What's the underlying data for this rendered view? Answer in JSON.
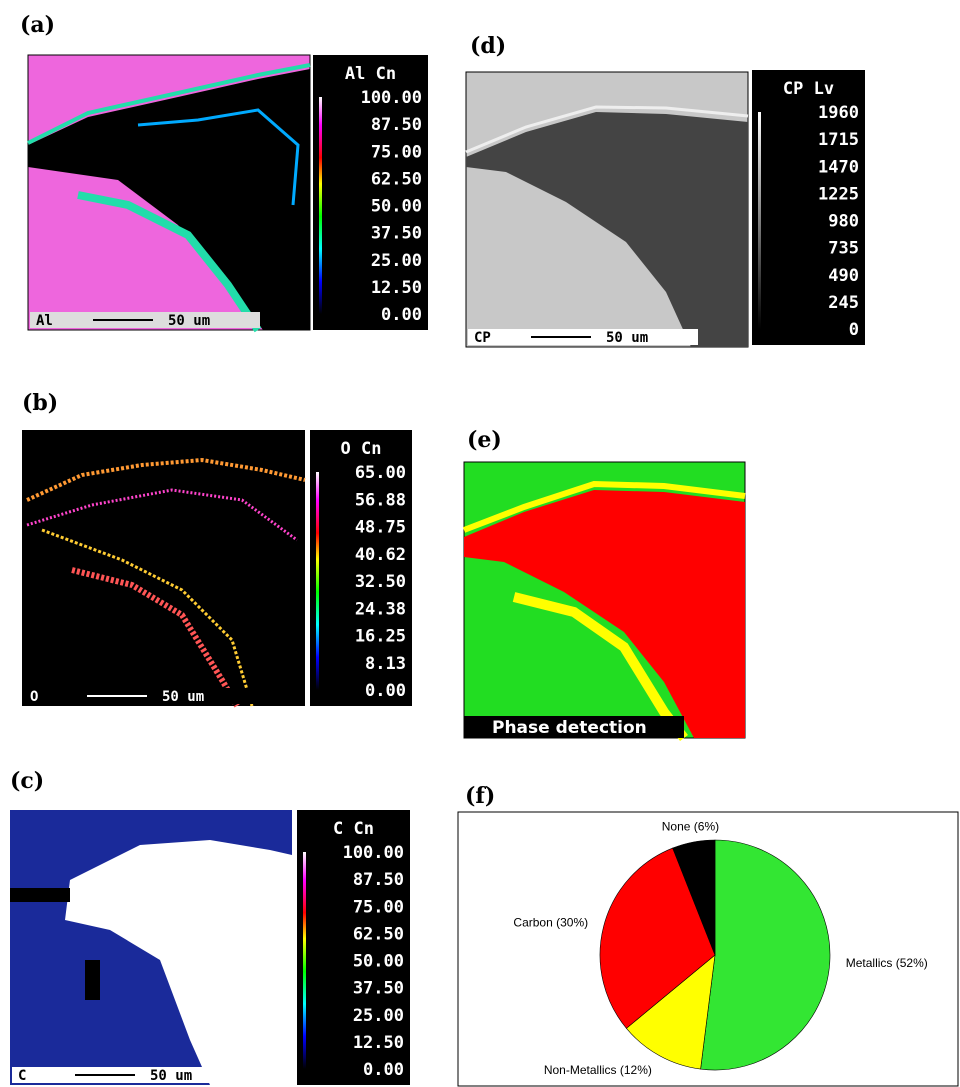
{
  "maps": [
    {
      "label": "(a)",
      "colorbar_title": "Al Cn",
      "ticks": [
        "100.00",
        "87.50",
        "75.00",
        "62.50",
        "50.00",
        "37.50",
        "25.00",
        "12.50",
        "0.00"
      ],
      "scale_element": "Al",
      "scale_length": "50 um"
    },
    {
      "label": "(b)",
      "colorbar_title": "O Cn",
      "ticks": [
        "65.00",
        "56.88",
        "48.75",
        "40.62",
        "32.50",
        "24.38",
        "16.25",
        "8.13",
        "0.00"
      ],
      "scale_element": "O",
      "scale_length": "50 um"
    },
    {
      "label": "(c)",
      "colorbar_title": "C Cn",
      "ticks": [
        "100.00",
        "87.50",
        "75.00",
        "62.50",
        "50.00",
        "37.50",
        "25.00",
        "12.50",
        "0.00"
      ],
      "scale_element": "C",
      "scale_length": "50 um"
    },
    {
      "label": "(d)",
      "colorbar_title": "CP Lv",
      "ticks": [
        "1960",
        "1715",
        "1470",
        "1225",
        "980",
        "735",
        "490",
        "245",
        "0"
      ],
      "scale_element": "CP",
      "scale_length": "50 um"
    }
  ],
  "phase_map": {
    "label": "(e)",
    "caption": "Phase detection"
  },
  "chart_data": {
    "type": "pie",
    "title": "(f)",
    "categories": [
      "Metallics (52%)",
      "Non-Metallics (12%)",
      "Carbon (30%)",
      "None (6%)"
    ],
    "values": [
      52,
      12,
      30,
      6
    ],
    "colors": [
      "#33e633",
      "#ffff00",
      "#ff0000",
      "#000000"
    ]
  }
}
